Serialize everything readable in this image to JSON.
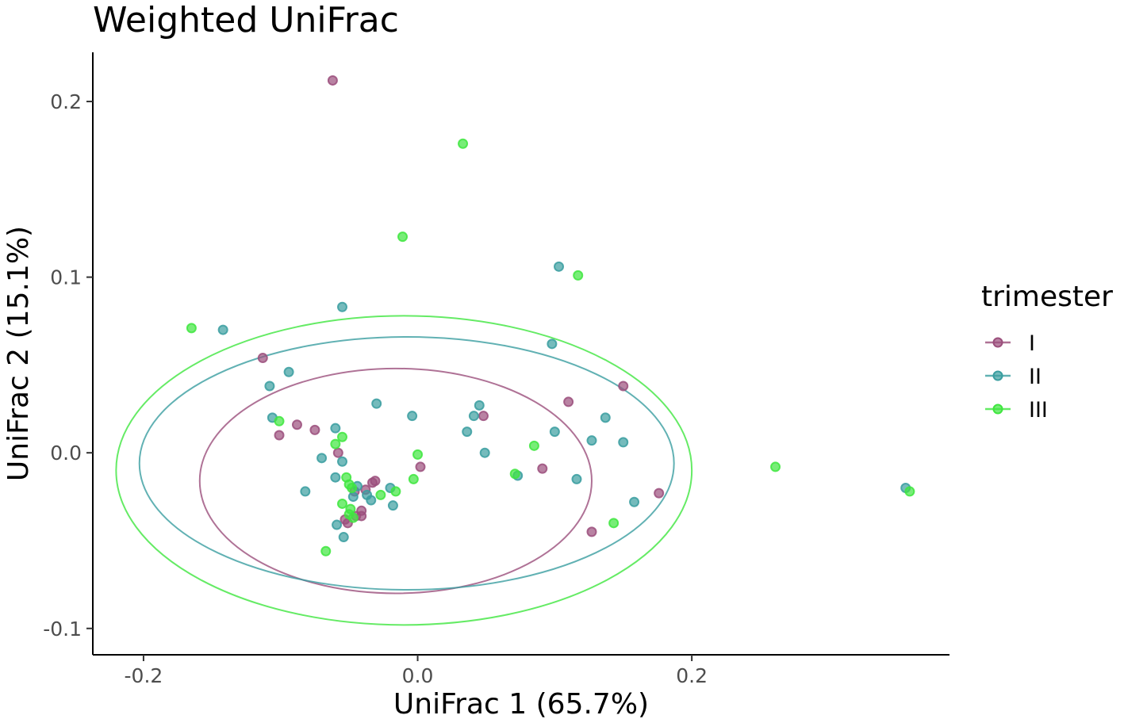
{
  "chart_data": {
    "type": "scatter",
    "title": "Weighted UniFrac",
    "xlabel": "UniFrac 1 (65.7%)",
    "ylabel": "UniFrac 2 (15.1%)",
    "xlim": [
      -0.237,
      0.388
    ],
    "ylim": [
      -0.115,
      0.228
    ],
    "xticks": [
      -0.2,
      0.0,
      0.2
    ],
    "xtick_labels": [
      "-0.2",
      "0.0",
      "0.2"
    ],
    "yticks": [
      -0.1,
      0.0,
      0.1,
      0.2
    ],
    "ytick_labels": [
      "-0.1",
      "0.0",
      "0.1",
      "0.2"
    ],
    "grid": false,
    "legend": {
      "title": "trimester",
      "position": "right"
    },
    "series": [
      {
        "name": "I",
        "color": "#9b4f7c",
        "points": [
          [
            -0.062,
            0.212
          ],
          [
            -0.113,
            0.054
          ],
          [
            -0.088,
            0.016
          ],
          [
            -0.101,
            0.01
          ],
          [
            -0.075,
            0.013
          ],
          [
            -0.058,
            0.0
          ],
          [
            -0.046,
            -0.022
          ],
          [
            -0.038,
            -0.021
          ],
          [
            -0.033,
            -0.017
          ],
          [
            -0.031,
            -0.016
          ],
          [
            -0.041,
            -0.033
          ],
          [
            -0.045,
            -0.036
          ],
          [
            -0.053,
            -0.038
          ],
          [
            -0.051,
            -0.04
          ],
          [
            -0.041,
            -0.036
          ],
          [
            0.002,
            -0.008
          ],
          [
            0.048,
            0.021
          ],
          [
            0.091,
            -0.009
          ],
          [
            0.11,
            0.029
          ],
          [
            0.127,
            -0.045
          ],
          [
            0.15,
            0.038
          ],
          [
            0.176,
            -0.023
          ]
        ],
        "ellipse": {
          "cx": -0.016,
          "cy": -0.016,
          "rx": 0.143,
          "ry": 0.064
        }
      },
      {
        "name": "II",
        "color": "#3a9ea0",
        "points": [
          [
            -0.142,
            0.07
          ],
          [
            -0.108,
            0.038
          ],
          [
            -0.094,
            0.046
          ],
          [
            -0.106,
            0.02
          ],
          [
            -0.055,
            0.083
          ],
          [
            -0.06,
            0.014
          ],
          [
            -0.07,
            -0.003
          ],
          [
            -0.055,
            -0.005
          ],
          [
            -0.06,
            -0.014
          ],
          [
            -0.082,
            -0.022
          ],
          [
            -0.059,
            -0.041
          ],
          [
            -0.054,
            -0.048
          ],
          [
            -0.044,
            -0.019
          ],
          [
            -0.047,
            -0.025
          ],
          [
            -0.037,
            -0.024
          ],
          [
            -0.034,
            -0.027
          ],
          [
            -0.03,
            0.028
          ],
          [
            -0.018,
            -0.03
          ],
          [
            -0.02,
            -0.02
          ],
          [
            -0.004,
            0.021
          ],
          [
            0.036,
            0.012
          ],
          [
            0.041,
            0.021
          ],
          [
            0.045,
            0.027
          ],
          [
            0.049,
            0.0
          ],
          [
            0.073,
            -0.013
          ],
          [
            0.098,
            0.062
          ],
          [
            0.1,
            0.012
          ],
          [
            0.103,
            0.106
          ],
          [
            0.116,
            -0.015
          ],
          [
            0.127,
            0.007
          ],
          [
            0.137,
            0.02
          ],
          [
            0.15,
            0.006
          ],
          [
            0.158,
            -0.028
          ],
          [
            0.356,
            -0.02
          ]
        ],
        "ellipse": {
          "cx": -0.008,
          "cy": -0.006,
          "rx": 0.195,
          "ry": 0.072
        }
      },
      {
        "name": "III",
        "color": "#3fe63f",
        "points": [
          [
            -0.165,
            0.071
          ],
          [
            -0.101,
            0.018
          ],
          [
            -0.06,
            0.005
          ],
          [
            -0.055,
            0.009
          ],
          [
            -0.052,
            -0.014
          ],
          [
            -0.05,
            -0.018
          ],
          [
            -0.048,
            -0.02
          ],
          [
            -0.055,
            -0.029
          ],
          [
            -0.049,
            -0.032
          ],
          [
            -0.05,
            -0.035
          ],
          [
            -0.047,
            -0.037
          ],
          [
            -0.067,
            -0.056
          ],
          [
            -0.027,
            -0.024
          ],
          [
            -0.016,
            -0.022
          ],
          [
            -0.011,
            0.123
          ],
          [
            -0.003,
            -0.015
          ],
          [
            0.0,
            -0.001
          ],
          [
            0.033,
            0.176
          ],
          [
            0.071,
            -0.012
          ],
          [
            0.085,
            0.004
          ],
          [
            0.117,
            0.101
          ],
          [
            0.143,
            -0.04
          ],
          [
            0.261,
            -0.008
          ],
          [
            0.359,
            -0.022
          ]
        ],
        "ellipse": {
          "cx": -0.01,
          "cy": -0.01,
          "rx": 0.21,
          "ry": 0.088
        }
      }
    ]
  }
}
